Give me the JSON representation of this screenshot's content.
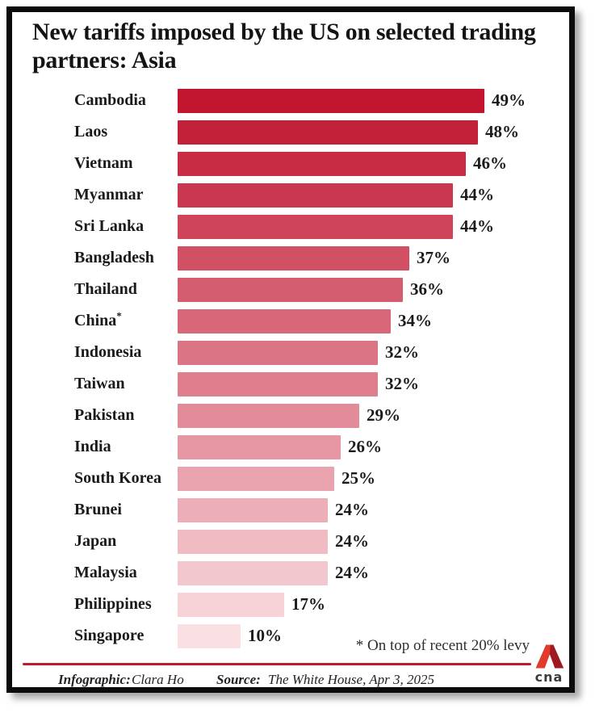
{
  "page": {
    "title": "New tariffs imposed by the US on selected trading partners: Asia"
  },
  "chart_data": {
    "type": "bar",
    "orientation": "horizontal",
    "title": "New tariffs imposed by the US on selected trading partners: Asia",
    "xlabel": "",
    "ylabel": "",
    "unit": "%",
    "xlim": [
      0,
      49
    ],
    "grid": false,
    "legend": false,
    "categories": [
      "Cambodia",
      "Laos",
      "Vietnam",
      "Myanmar",
      "Sri Lanka",
      "Bangladesh",
      "Thailand",
      "China*",
      "Indonesia",
      "Taiwan",
      "Pakistan",
      "India",
      "South Korea",
      "Brunei",
      "Japan",
      "Malaysia",
      "Philippines",
      "Singapore"
    ],
    "values": [
      49,
      48,
      46,
      44,
      44,
      37,
      36,
      34,
      32,
      32,
      29,
      26,
      25,
      24,
      24,
      24,
      17,
      10
    ],
    "value_labels": [
      "49%",
      "48%",
      "46%",
      "44%",
      "44%",
      "37%",
      "36%",
      "34%",
      "32%",
      "32%",
      "29%",
      "26%",
      "25%",
      "24%",
      "24%",
      "24%",
      "17%",
      "10%"
    ],
    "bar_colors": [
      "#C0142F",
      "#C32039",
      "#C72C44",
      "#CA384F",
      "#CE4459",
      "#D15064",
      "#D45C6F",
      "#D86879",
      "#DB7484",
      "#DF7F8E",
      "#E28B99",
      "#E697A3",
      "#E9A3AE",
      "#ECAFB9",
      "#F0BBC3",
      "#F3C7CE",
      "#F7D3D8",
      "#FADFE3"
    ],
    "annotation": "* On top of recent 20% levy"
  },
  "footnote": "* On top of recent 20% levy",
  "footer": {
    "infographic_label": "Infographic:",
    "infographic_value": "Clara Ho",
    "source_label": "Source:",
    "source_value": "The White House, Apr 3, 2025",
    "logo_text": "cna"
  },
  "colors": {
    "divider_red": "#C21A2C",
    "title_text": "#141414",
    "logo_red_bright": "#E23A2B",
    "logo_red_dark": "#9E1A1F"
  }
}
